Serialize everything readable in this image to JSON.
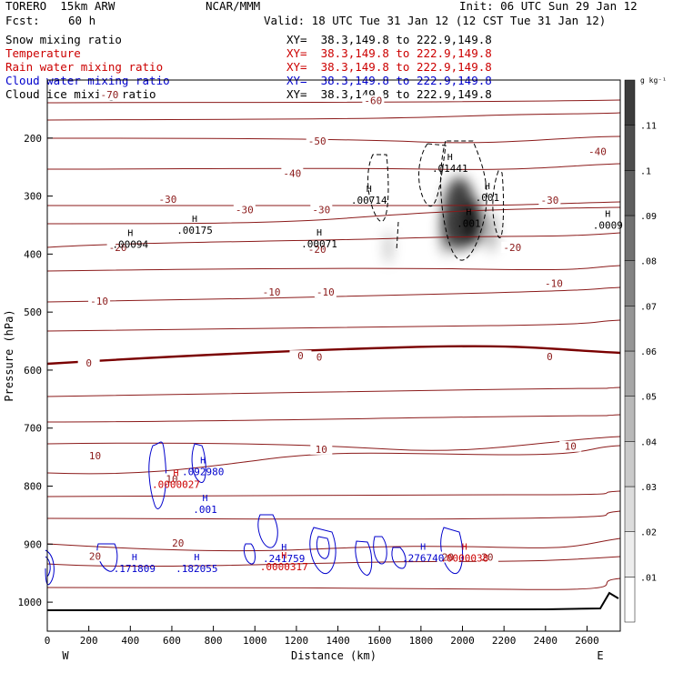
{
  "header": {
    "model": "TORERO  15km ARW",
    "org": "NCAR/MMM",
    "init": "Init: 06 UTC Sun 29 Jan 12",
    "fcst_label": "Fcst:",
    "fcst_value": "60 h",
    "valid": "Valid: 18 UTC Tue 31 Jan 12 (12 CST Tue 31 Jan 12)"
  },
  "fields": [
    {
      "name": "Snow mixing ratio",
      "xy": "XY=  38.3,149.8 to 222.9,149.8",
      "color": "#000000"
    },
    {
      "name": "Temperature",
      "xy": "XY=  38.3,149.8 to 222.9,149.8",
      "color": "#cc0000"
    },
    {
      "name": "Rain water mixing ratio",
      "xy": "XY=  38.3,149.8 to 222.9,149.8",
      "color": "#cc0000"
    },
    {
      "name": "Cloud water mixing ratio",
      "xy": "XY=  38.3,149.8 to 222.9,149.8",
      "color": "#0000cc"
    },
    {
      "name": "Cloud ice mixing ratio",
      "xy": "XY=  38.3,149.8 to 222.9,149.8",
      "color": "#000000"
    }
  ],
  "chart_data": {
    "type": "contour-cross-section",
    "xlabel": "Distance (km)",
    "ylabel": "Pressure (hPa)",
    "xlim": [
      0,
      2760
    ],
    "ylim": [
      1050,
      100
    ],
    "x_ticks": [
      0,
      200,
      400,
      600,
      800,
      1000,
      1200,
      1400,
      1600,
      1800,
      2000,
      2200,
      2400,
      2600
    ],
    "y_ticks": [
      200,
      300,
      400,
      500,
      600,
      700,
      800,
      900,
      1000
    ],
    "left_end": "W",
    "right_end": "E",
    "colorbar": {
      "unit": "g kg⁻¹",
      "levels": [
        ".01",
        ".02",
        ".03",
        ".04",
        ".05",
        ".06",
        ".07",
        ".08",
        ".09",
        ".1",
        ".11"
      ]
    },
    "temperature_labels": [
      {
        "x": 300,
        "p": 130,
        "text": "-70"
      },
      {
        "x": 1570,
        "p": 140,
        "text": "-60"
      },
      {
        "x": 1300,
        "p": 210,
        "text": "-50"
      },
      {
        "x": 1180,
        "p": 265,
        "text": "-40"
      },
      {
        "x": 2650,
        "p": 228,
        "text": "-40"
      },
      {
        "x": 580,
        "p": 310,
        "text": "-30"
      },
      {
        "x": 950,
        "p": 328,
        "text": "-30"
      },
      {
        "x": 1320,
        "p": 328,
        "text": "-30"
      },
      {
        "x": 2420,
        "p": 312,
        "text": "-30"
      },
      {
        "x": 340,
        "p": 393,
        "text": "-20"
      },
      {
        "x": 1300,
        "p": 396,
        "text": "-20"
      },
      {
        "x": 2240,
        "p": 393,
        "text": "-20"
      },
      {
        "x": 250,
        "p": 486,
        "text": "-10"
      },
      {
        "x": 1080,
        "p": 470,
        "text": "-10"
      },
      {
        "x": 1340,
        "p": 470,
        "text": "-10"
      },
      {
        "x": 2440,
        "p": 455,
        "text": "-10"
      },
      {
        "x": 1220,
        "p": 580,
        "text": "0"
      },
      {
        "x": 1310,
        "p": 582,
        "text": "0"
      },
      {
        "x": 2420,
        "p": 581,
        "text": "0"
      },
      {
        "x": 200,
        "p": 592,
        "text": "0"
      },
      {
        "x": 230,
        "p": 752,
        "text": "10"
      },
      {
        "x": 1320,
        "p": 741,
        "text": "10"
      },
      {
        "x": 2520,
        "p": 736,
        "text": "10"
      },
      {
        "x": 600,
        "p": 792,
        "text": "10"
      },
      {
        "x": 630,
        "p": 903,
        "text": "20"
      },
      {
        "x": 230,
        "p": 925,
        "text": "20"
      },
      {
        "x": 1930,
        "p": 927,
        "text": "20"
      },
      {
        "x": 2120,
        "p": 927,
        "text": "20"
      }
    ],
    "max_labels": [
      {
        "x": 400,
        "p": 386,
        "value": ".00094",
        "color": "#000000"
      },
      {
        "x": 710,
        "p": 362,
        "value": ".00175",
        "color": "#000000"
      },
      {
        "x": 1310,
        "p": 385,
        "value": ".00071",
        "color": "#000000"
      },
      {
        "x": 1550,
        "p": 310,
        "value": ".00714",
        "color": "#000000"
      },
      {
        "x": 1940,
        "p": 255,
        "value": ".01441",
        "color": "#000000"
      },
      {
        "x": 2120,
        "p": 305,
        "value": ".001",
        "color": "#000000"
      },
      {
        "x": 2030,
        "p": 350,
        "value": ".001",
        "color": "#000000"
      },
      {
        "x": 2700,
        "p": 353,
        "value": ".0009",
        "color": "#000000"
      },
      {
        "x": 620,
        "p": 800,
        "value": ".0000027",
        "color": "#cc0000"
      },
      {
        "x": 750,
        "p": 778,
        "value": ".092980",
        "color": "#0000cc"
      },
      {
        "x": 760,
        "p": 843,
        "value": ".001",
        "color": "#0000cc"
      },
      {
        "x": 1140,
        "p": 928,
        "value": ".241759",
        "color": "#0000cc"
      },
      {
        "x": 1140,
        "p": 942,
        "value": ".0000317",
        "color": "#cc0000"
      },
      {
        "x": 1810,
        "p": 927,
        "value": ".276740",
        "color": "#0000cc"
      },
      {
        "x": 2010,
        "p": 927,
        "value": ".0000038",
        "color": "#cc0000"
      },
      {
        "x": 420,
        "p": 945,
        "value": ".171809",
        "color": "#0000cc"
      },
      {
        "x": 720,
        "p": 945,
        "value": ".182055",
        "color": "#0000cc"
      }
    ]
  }
}
